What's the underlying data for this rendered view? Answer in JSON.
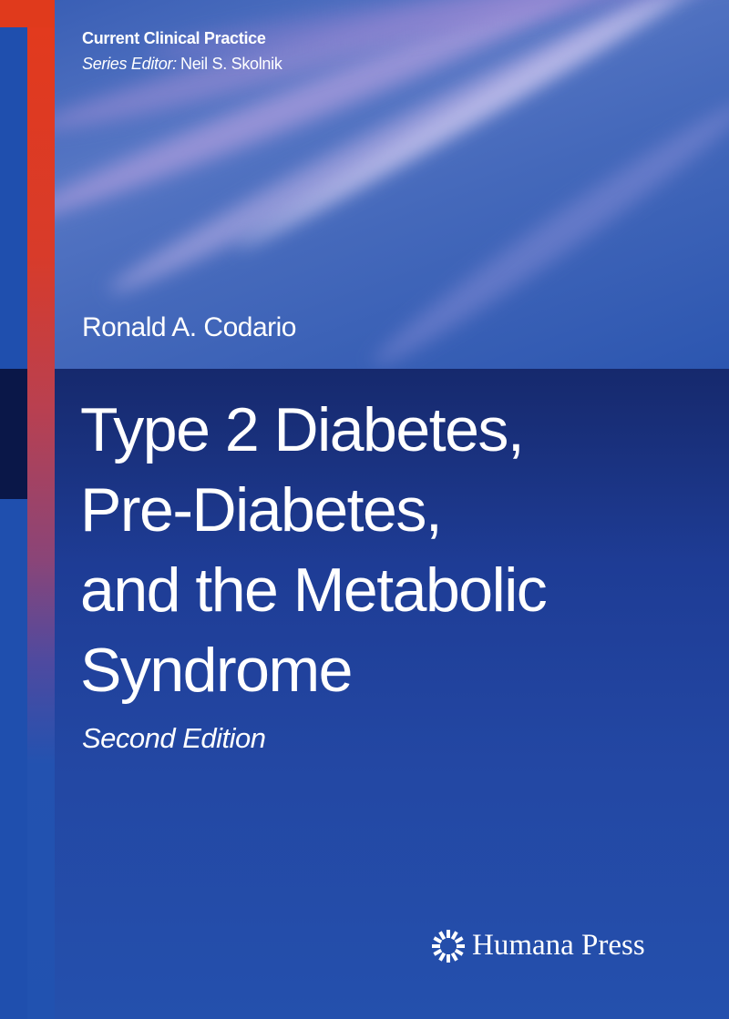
{
  "series": {
    "title": "Current Clinical Practice",
    "editor_label": "Series Editor:",
    "editor_name": "Neil S. Skolnik"
  },
  "author": "Ronald A. Codario",
  "title_lines": [
    "Type 2 Diabetes,",
    "Pre-Diabetes,",
    "and the Metabolic",
    "Syndrome"
  ],
  "edition": "Second Edition",
  "publisher": {
    "name": "Humana Press",
    "logo_icon": "sunburst-icon"
  },
  "colors": {
    "spine_red": "#e03a1c",
    "cover_blue": "#2150ad",
    "navy": "#0a1748"
  }
}
